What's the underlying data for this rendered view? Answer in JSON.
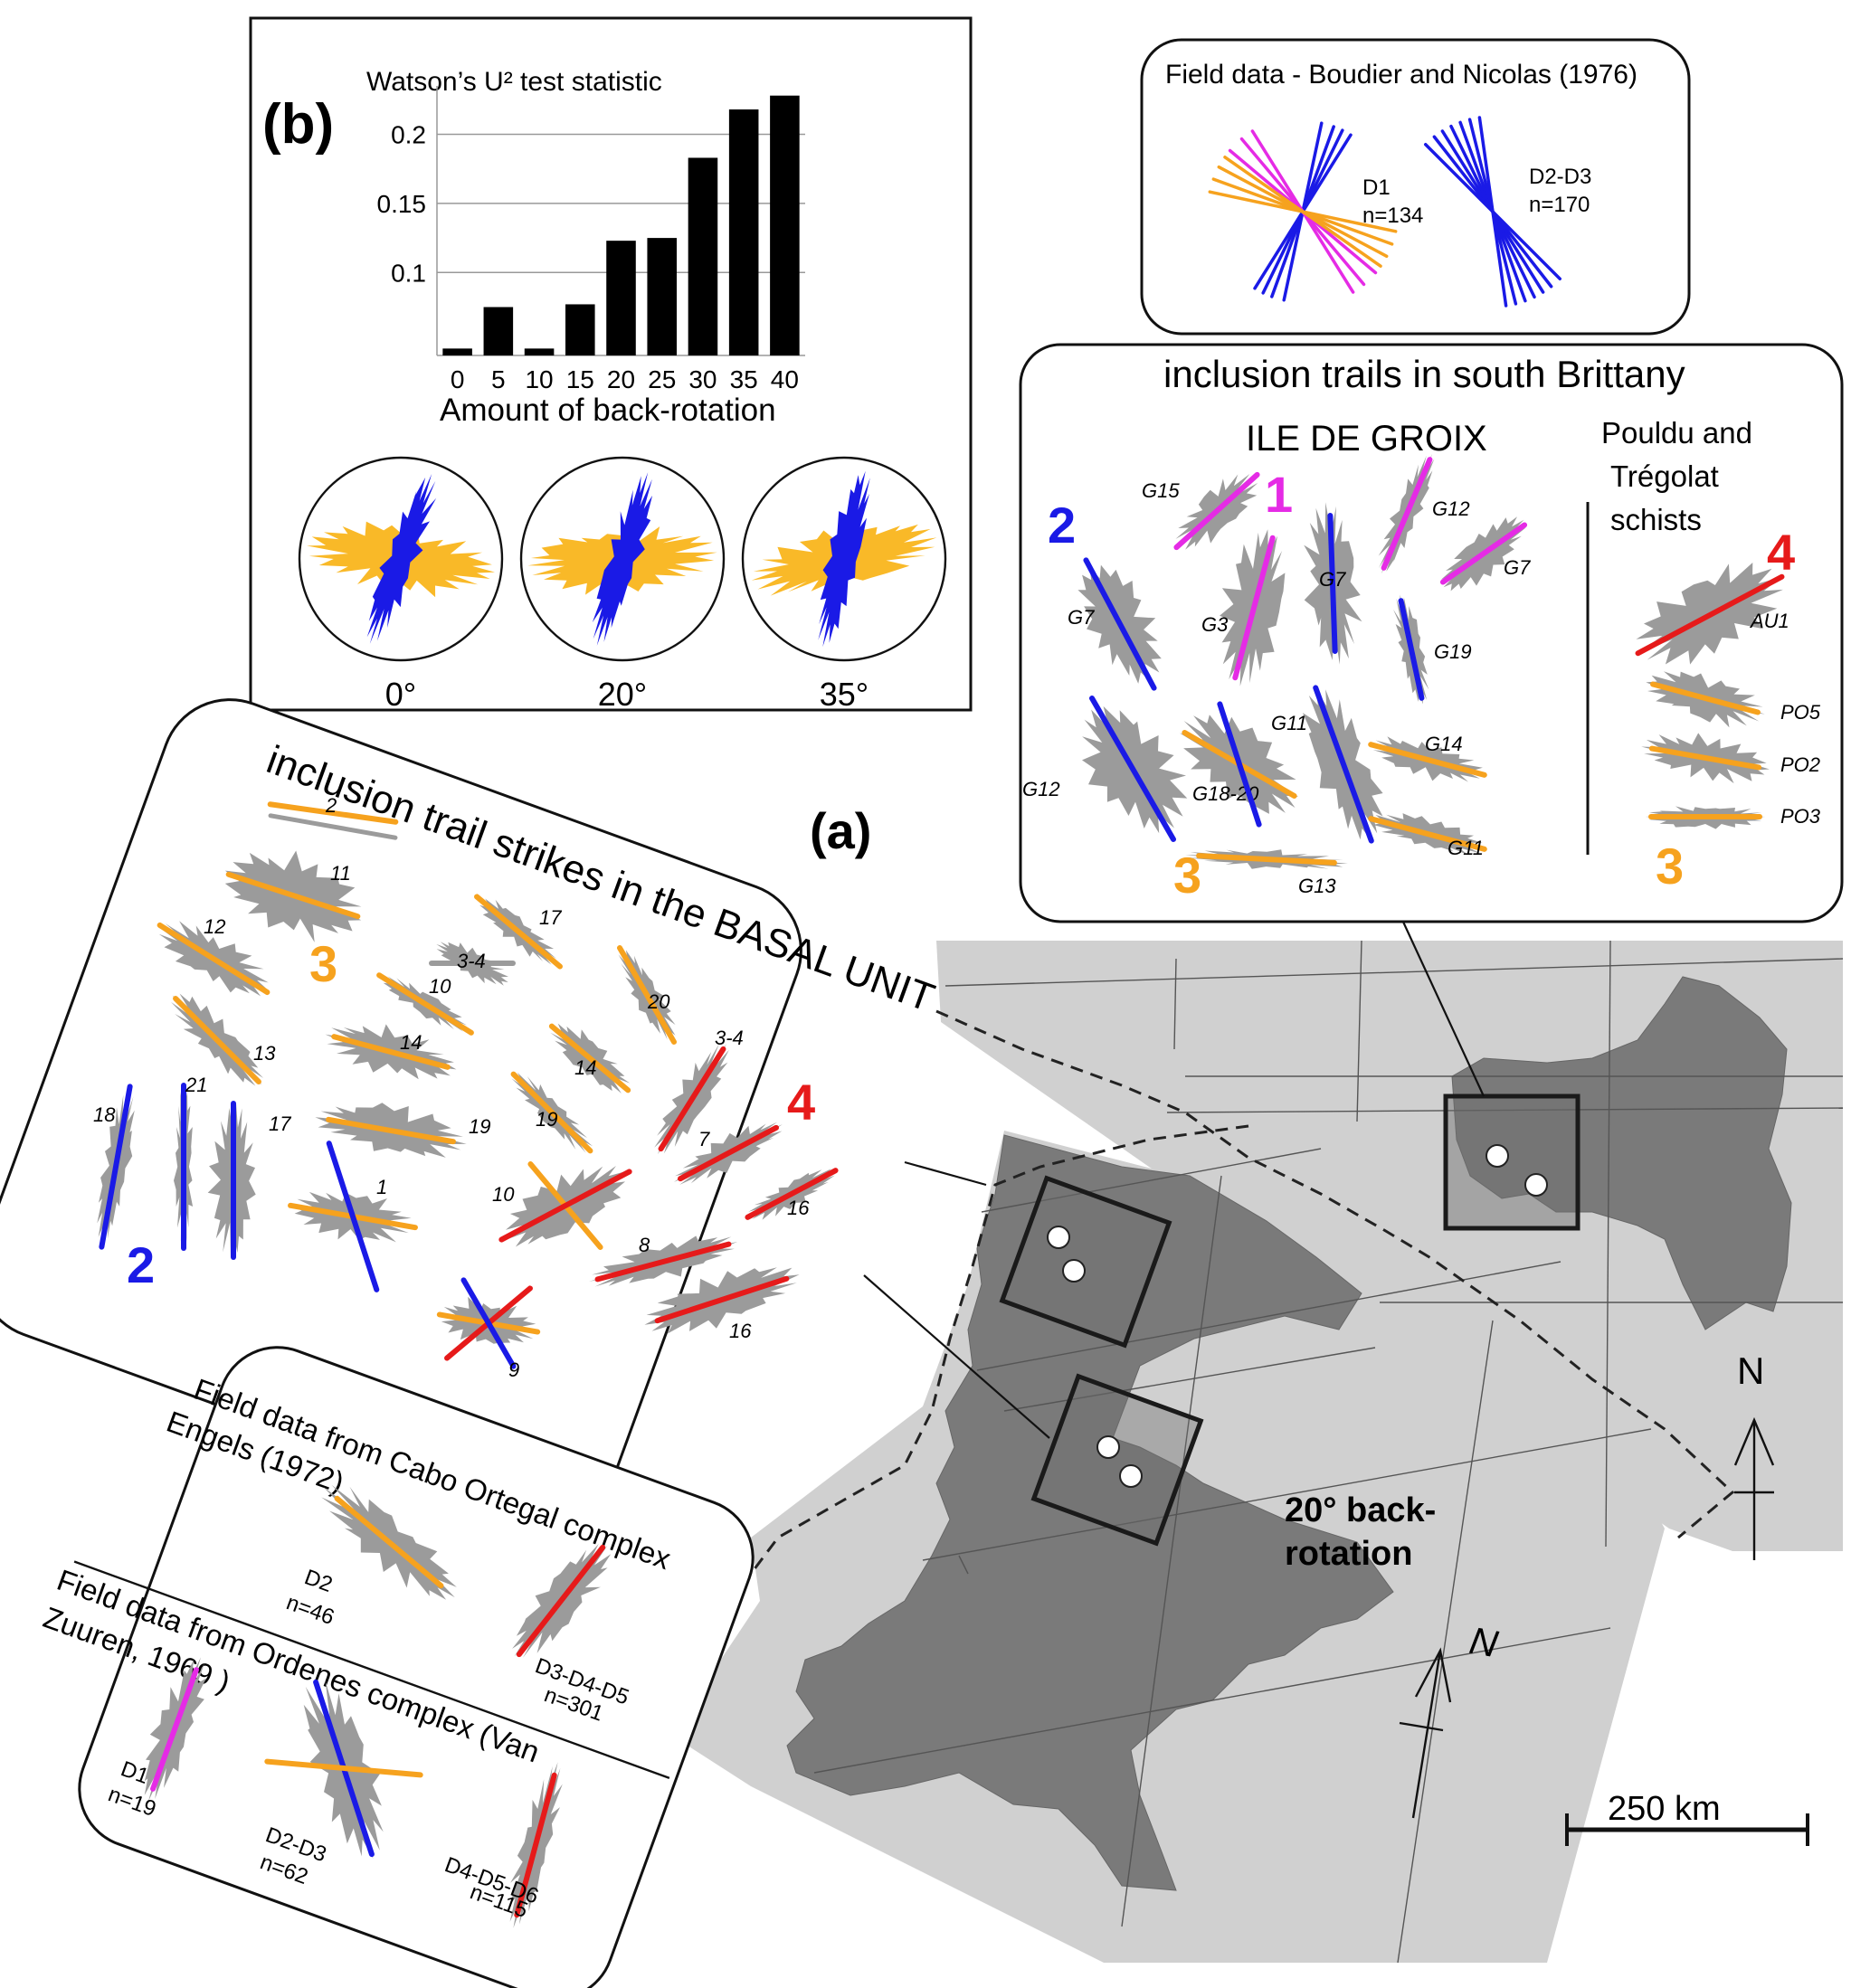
{
  "panel_b": {
    "label": "(b)",
    "ylabel": "Watson’s U² test statistic",
    "xlabel": "Amount of back-rotation",
    "roses": [
      {
        "label": "0°",
        "rotation": 0
      },
      {
        "label": "20°",
        "rotation": 20
      },
      {
        "label": "35°",
        "rotation": 35
      }
    ]
  },
  "chart_data": {
    "type": "bar",
    "categories": [
      "0",
      "5",
      "10",
      "15",
      "20",
      "25",
      "30",
      "35",
      "40"
    ],
    "values": [
      0.045,
      0.075,
      0.045,
      0.077,
      0.123,
      0.125,
      0.183,
      0.218,
      0.228
    ],
    "yticks": [
      "0.1",
      "0.15",
      "0.2"
    ],
    "ylim": [
      0.04,
      0.235
    ],
    "title": "",
    "xlabel": "Amount of back-rotation",
    "ylabel": "Watson’s U² test statistic",
    "grid": true
  },
  "field_boudier": {
    "title": "Field data - Boudier and Nicolas (1976)",
    "d1": "D1",
    "d1_n": "n=134",
    "d23": "D2-D3",
    "d23_n": "n=170"
  },
  "brittany": {
    "title": "inclusion trails in south Brittany",
    "groix": "ILE DE GROIX",
    "pouldu_line1": "Pouldu and",
    "pouldu_line2": "Trégolat",
    "pouldu_line3": "schists",
    "group_1": "1",
    "group_2": "2",
    "group_3": "3",
    "group_4": "4",
    "samples": [
      "G15",
      "G7",
      "G12",
      "G7",
      "G3",
      "G7",
      "G19",
      "G12",
      "G18-20",
      "G11",
      "G14",
      "G11",
      "G13",
      "AU1",
      "PO5",
      "PO2",
      "PO3"
    ]
  },
  "panel_a": {
    "label": "(a)",
    "title": "inclusion trail strikes in the BASAL UNIT",
    "group_2": "2",
    "group_3": "3",
    "group_4": "4",
    "samples": [
      "2",
      "11",
      "12",
      "17",
      "3-4",
      "10",
      "20",
      "13",
      "14",
      "14",
      "3-4",
      "18",
      "21",
      "17",
      "19",
      "19",
      "1",
      "10",
      "7",
      "16",
      "8",
      "16",
      "9"
    ]
  },
  "field_galicia": {
    "cabo_line1": "Field data from Cabo Ortegal complex",
    "cabo_line2": "Engels (1972)",
    "d2": "D2",
    "d2_n": "n=46",
    "d345": "D3-D4-D5",
    "d345_n": "n=301",
    "ordenes_line1": "Field data from Ordenes  complex (Van",
    "ordenes_line2": "Zuuren, 1969 )",
    "d1": "D1",
    "d1_n": "n=19",
    "d23": "D2-D3",
    "d23_n": "n=62",
    "d456": "D4-D5-D6",
    "d456_n": "n=115"
  },
  "map": {
    "north": "N",
    "rotation_line1": "20° back-",
    "rotation_line2": "rotation",
    "scale": "250 km"
  },
  "colors": {
    "orange": "#F6A21E",
    "blue": "#1A1AE6",
    "magenta": "#E52BE5",
    "red": "#E61A1A",
    "rose_gray": "#9B9B9B",
    "land_dark": "#7A7A7A",
    "region_light": "#D0D0D0",
    "ochre": "#F9B928"
  }
}
